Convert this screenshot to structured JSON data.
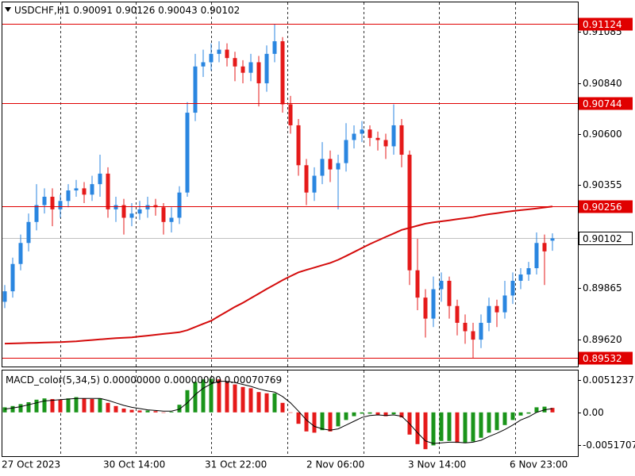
{
  "chart_data": {
    "type": "candlestick",
    "symbol": "USDCHF,H1",
    "bull_color": "#2a86e0",
    "bear_color": "#e51a1a",
    "ylim": [
      0.89492,
      0.91225
    ],
    "yticks": [
      0.91085,
      {
        "value": 0.9084,
        "label": "0.90840"
      },
      {
        "value": 0.906,
        "label": "0.90600"
      },
      0.90355,
      0.89865,
      {
        "value": 0.8962,
        "label": "0.89620"
      }
    ],
    "ohlc": [
      [
        0.898,
        0.8988,
        0.8977,
        0.8985
      ],
      [
        0.8985,
        0.9001,
        0.8982,
        0.8998
      ],
      [
        0.8998,
        0.9012,
        0.8995,
        0.9008
      ],
      [
        0.9008,
        0.9022,
        0.9004,
        0.9018
      ],
      [
        0.9018,
        0.9036,
        0.9014,
        0.9026
      ],
      [
        0.9026,
        0.9034,
        0.9022,
        0.903
      ],
      [
        0.903,
        0.9034,
        0.9016,
        0.9024
      ],
      [
        0.9024,
        0.9031,
        0.902,
        0.9028
      ],
      [
        0.9028,
        0.9036,
        0.9025,
        0.9033
      ],
      [
        0.9033,
        0.9038,
        0.903,
        0.9034
      ],
      [
        0.9034,
        0.9037,
        0.9027,
        0.9031
      ],
      [
        0.9031,
        0.904,
        0.9028,
        0.9036
      ],
      [
        0.9036,
        0.905,
        0.903,
        0.9041
      ],
      [
        0.9041,
        0.9044,
        0.902,
        0.9024
      ],
      [
        0.9024,
        0.903,
        0.9018,
        0.9026
      ],
      [
        0.9026,
        0.9029,
        0.9012,
        0.902
      ],
      [
        0.902,
        0.9027,
        0.9016,
        0.9022
      ],
      [
        0.9022,
        0.9028,
        0.9019,
        0.9024
      ],
      [
        0.9024,
        0.903,
        0.902,
        0.9026
      ],
      [
        0.9026,
        0.9029,
        0.9021,
        0.9025
      ],
      [
        0.9025,
        0.9027,
        0.9012,
        0.9018
      ],
      [
        0.9018,
        0.9025,
        0.9013,
        0.902
      ],
      [
        0.902,
        0.9035,
        0.9017,
        0.9032
      ],
      [
        0.9032,
        0.9075,
        0.903,
        0.907
      ],
      [
        0.907,
        0.9098,
        0.9066,
        0.9092
      ],
      [
        0.9092,
        0.91,
        0.9087,
        0.9094
      ],
      [
        0.9094,
        0.9103,
        0.909,
        0.9098
      ],
      [
        0.9098,
        0.9104,
        0.9094,
        0.91
      ],
      [
        0.91,
        0.9103,
        0.9092,
        0.9096
      ],
      [
        0.9096,
        0.9099,
        0.9085,
        0.9092
      ],
      [
        0.9092,
        0.9095,
        0.9084,
        0.9089
      ],
      [
        0.9089,
        0.9098,
        0.9085,
        0.9094
      ],
      [
        0.9094,
        0.9097,
        0.9073,
        0.9084
      ],
      [
        0.9084,
        0.9102,
        0.908,
        0.9098
      ],
      [
        0.9098,
        0.9112,
        0.9094,
        0.9104
      ],
      [
        0.9104,
        0.9106,
        0.907,
        0.9074
      ],
      [
        0.9074,
        0.9078,
        0.906,
        0.9064
      ],
      [
        0.9064,
        0.9067,
        0.904,
        0.9045
      ],
      [
        0.9045,
        0.9048,
        0.9026,
        0.9032
      ],
      [
        0.9032,
        0.9044,
        0.9028,
        0.904
      ],
      [
        0.904,
        0.9056,
        0.9036,
        0.9048
      ],
      [
        0.9048,
        0.9052,
        0.9037,
        0.9043
      ],
      [
        0.9043,
        0.905,
        0.9024,
        0.9046
      ],
      [
        0.9046,
        0.9065,
        0.9042,
        0.9057
      ],
      [
        0.9057,
        0.9064,
        0.9053,
        0.906
      ],
      [
        0.906,
        0.9066,
        0.9056,
        0.9062
      ],
      [
        0.9062,
        0.9064,
        0.9054,
        0.9058
      ],
      [
        0.9058,
        0.9061,
        0.9052,
        0.9057
      ],
      [
        0.9057,
        0.906,
        0.9048,
        0.9054
      ],
      [
        0.9054,
        0.9074,
        0.905,
        0.9064
      ],
      [
        0.9064,
        0.9067,
        0.9044,
        0.905
      ],
      [
        0.905,
        0.9052,
        0.8988,
        0.8995
      ],
      [
        0.8995,
        0.901,
        0.8976,
        0.8982
      ],
      [
        0.8982,
        0.8986,
        0.8963,
        0.8972
      ],
      [
        0.8972,
        0.8992,
        0.8968,
        0.8986
      ],
      [
        0.8986,
        0.8994,
        0.898,
        0.899
      ],
      [
        0.899,
        0.8992,
        0.8972,
        0.8978
      ],
      [
        0.8978,
        0.8981,
        0.8964,
        0.897
      ],
      [
        0.897,
        0.8974,
        0.896,
        0.8966
      ],
      [
        0.8966,
        0.897,
        0.89532,
        0.8962
      ],
      [
        0.8962,
        0.8974,
        0.8958,
        0.897
      ],
      [
        0.897,
        0.8982,
        0.8966,
        0.8978
      ],
      [
        0.8978,
        0.8981,
        0.8968,
        0.8975
      ],
      [
        0.8975,
        0.899,
        0.8972,
        0.8983
      ],
      [
        0.8983,
        0.8994,
        0.8979,
        0.899
      ],
      [
        0.899,
        0.8996,
        0.8986,
        0.8993
      ],
      [
        0.8993,
        0.8999,
        0.899,
        0.8996
      ],
      [
        0.8996,
        0.9013,
        0.8993,
        0.9008
      ],
      [
        0.9008,
        0.9012,
        0.8988,
        0.9004
      ],
      [
        0.90091,
        0.90126,
        0.90043,
        0.90102
      ]
    ],
    "ma": {
      "color": "#d40c0c",
      "values": [
        0.89601,
        0.89602,
        0.89603,
        0.89604,
        0.89605,
        0.89606,
        0.89607,
        0.89608,
        0.8961,
        0.89612,
        0.89615,
        0.89618,
        0.89621,
        0.89624,
        0.89627,
        0.89629,
        0.89631,
        0.89635,
        0.89639,
        0.89643,
        0.89647,
        0.89651,
        0.89655,
        0.89665,
        0.8968,
        0.89695,
        0.8971,
        0.89732,
        0.89754,
        0.89776,
        0.89795,
        0.89817,
        0.89839,
        0.89861,
        0.89882,
        0.89903,
        0.89922,
        0.8994,
        0.89952,
        0.89963,
        0.89974,
        0.89985,
        0.9,
        0.90018,
        0.90037,
        0.90056,
        0.90075,
        0.90092,
        0.90109,
        0.90125,
        0.90142,
        0.90152,
        0.90162,
        0.90172,
        0.90178,
        0.90183,
        0.90188,
        0.90193,
        0.90198,
        0.90203,
        0.90211,
        0.90217,
        0.90222,
        0.90227,
        0.90232,
        0.90236,
        0.9024,
        0.90244,
        0.90249,
        0.90254
      ]
    },
    "levels": {
      "color": "#e00000",
      "values": [
        0.91124,
        0.90744,
        0.90256,
        0.89532
      ]
    },
    "x_labels": [
      "27 Oct 2023",
      "30 Oct 14:00",
      "31 Oct 22:00",
      "2 Nov 06:00",
      "3 Nov 14:00",
      "6 Nov 23:00"
    ],
    "macd": {
      "title": "MACD_color(5,34,5)",
      "readout": [
        "0.00000000",
        "0.00000000"
      ],
      "up_color": "#1a941a",
      "down_color": "#e51a1a",
      "signal_color": "#000000",
      "ylim": [
        -0.0069,
        0.0066
      ],
      "yticks": [
        0.0051237,
        {
          "value": 0,
          "label": "0.00"
        },
        -0.0051707
      ],
      "values": [
        0.0008,
        0.001,
        0.0013,
        0.0016,
        0.002,
        0.0022,
        0.0021,
        0.002,
        0.0022,
        0.0024,
        0.0022,
        0.0021,
        0.0022,
        0.0015,
        0.001,
        0.0006,
        0.0004,
        0.0003,
        0.0003,
        0.0002,
        0.0,
        0.0001,
        0.0012,
        0.0035,
        0.0048,
        0.0052,
        0.0053,
        0.0052,
        0.0048,
        0.0044,
        0.004,
        0.0038,
        0.0032,
        0.003,
        0.003,
        0.0015,
        0.0,
        -0.0018,
        -0.003,
        -0.0032,
        -0.0028,
        -0.003,
        -0.0022,
        -0.0012,
        -0.0006,
        -0.0002,
        -0.0002,
        -0.0004,
        -0.0006,
        -0.0003,
        -0.0008,
        -0.0035,
        -0.005,
        -0.0058,
        -0.0052,
        -0.0045,
        -0.0045,
        -0.0048,
        -0.0048,
        -0.0046,
        -0.004,
        -0.0032,
        -0.0028,
        -0.002,
        -0.0012,
        -0.0005,
        -0.0002,
        0.0008,
        0.0009,
        0.00070769
      ],
      "signal": [
        0.0005,
        0.0007,
        0.0009,
        0.0012,
        0.0015,
        0.0018,
        0.0019,
        0.002,
        0.0021,
        0.0022,
        0.0022,
        0.0022,
        0.0022,
        0.0019,
        0.0015,
        0.0011,
        0.0008,
        0.0006,
        0.0004,
        0.0003,
        0.0002,
        0.0002,
        0.0005,
        0.0015,
        0.0028,
        0.0038,
        0.0045,
        0.0049,
        0.0049,
        0.0047,
        0.0044,
        0.0041,
        0.0037,
        0.0034,
        0.0032,
        0.0025,
        0.0015,
        0.0002,
        -0.0012,
        -0.0022,
        -0.0026,
        -0.0028,
        -0.0026,
        -0.002,
        -0.0014,
        -0.0008,
        -0.0005,
        -0.0004,
        -0.0005,
        -0.0004,
        -0.0006,
        -0.0018,
        -0.0032,
        -0.0045,
        -0.0049,
        -0.0048,
        -0.0047,
        -0.0047,
        -0.0048,
        -0.0047,
        -0.0044,
        -0.0038,
        -0.0033,
        -0.0027,
        -0.002,
        -0.0012,
        -0.0007,
        0.0,
        0.0004,
        0.0006
      ]
    }
  }
}
